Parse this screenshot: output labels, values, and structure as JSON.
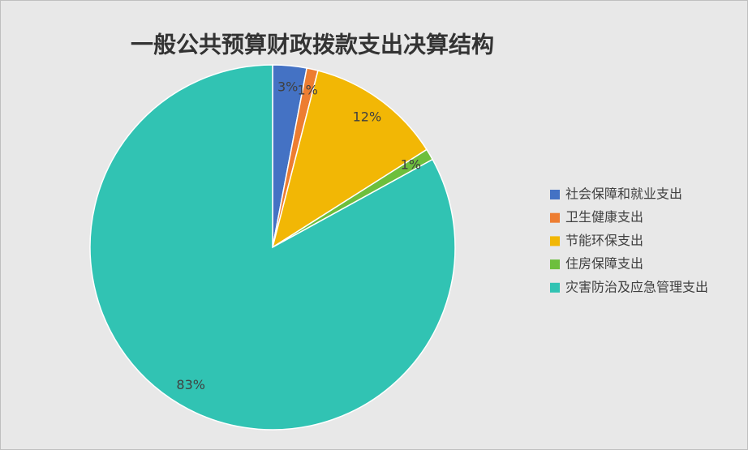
{
  "chart_data": {
    "type": "pie",
    "title": "一般公共预算财政拨款支出决算结构",
    "categories": [
      "社会保障和就业支出",
      "卫生健康支出",
      "节能环保支出",
      "住房保障支出",
      "灾害防治及应急管理支出"
    ],
    "values": [
      3,
      1,
      12,
      1,
      83
    ],
    "value_labels": [
      "3%",
      "1%",
      "12%",
      "1%",
      "83%"
    ],
    "colors": [
      "#4472c4",
      "#ed7d31",
      "#f2b705",
      "#6dbf3d",
      "#31c3b3"
    ],
    "legend": "right"
  }
}
